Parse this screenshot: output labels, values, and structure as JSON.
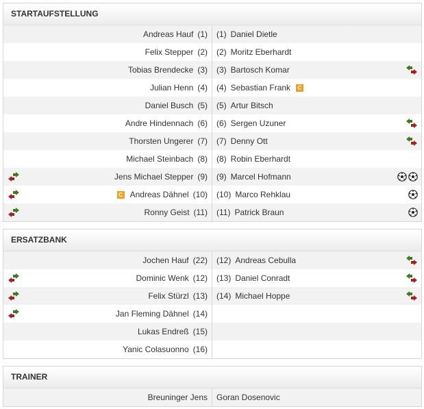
{
  "sections": [
    {
      "title": "STARTAUFSTELLUNG",
      "rows": [
        {
          "home": {
            "name": "Andreas Hauf",
            "num": "(1)",
            "icons": []
          },
          "away": {
            "num": "(1)",
            "name": "Daniel Dietle",
            "icons": []
          }
        },
        {
          "home": {
            "name": "Felix Stepper",
            "num": "(2)",
            "icons": []
          },
          "away": {
            "num": "(2)",
            "name": "Moritz Eberhardt",
            "icons": []
          }
        },
        {
          "home": {
            "name": "Tobias Brendecke",
            "num": "(3)",
            "icons": []
          },
          "away": {
            "num": "(3)",
            "name": "Bartosch Komar",
            "icons": [
              "substitution-out-icon"
            ]
          }
        },
        {
          "home": {
            "name": "Julian Henn",
            "num": "(4)",
            "icons": []
          },
          "away": {
            "num": "(4)",
            "name": "Sebastian Frank",
            "captain": "C",
            "icons": []
          }
        },
        {
          "home": {
            "name": "Daniel Busch",
            "num": "(5)",
            "icons": []
          },
          "away": {
            "num": "(5)",
            "name": "Artur Bitsch",
            "icons": []
          }
        },
        {
          "home": {
            "name": "Andre Hindennach",
            "num": "(6)",
            "icons": []
          },
          "away": {
            "num": "(6)",
            "name": "Sergen Uzuner",
            "icons": [
              "substitution-out-icon"
            ]
          }
        },
        {
          "home": {
            "name": "Thorsten Ungerer",
            "num": "(7)",
            "icons": []
          },
          "away": {
            "num": "(7)",
            "name": "Denny Ott",
            "icons": [
              "substitution-out-icon"
            ]
          }
        },
        {
          "home": {
            "name": "Michael Steinbach",
            "num": "(8)",
            "icons": []
          },
          "away": {
            "num": "(8)",
            "name": "Robin Eberhardt",
            "icons": []
          }
        },
        {
          "home": {
            "name": "Jens Michael Stepper",
            "num": "(9)",
            "icons": [
              "substitution-out-icon"
            ]
          },
          "away": {
            "num": "(9)",
            "name": "Marcel Hofmann",
            "icons": [
              "goal-icon",
              "goal-icon"
            ]
          }
        },
        {
          "home": {
            "name": "Andreas Dähnel",
            "num": "(10)",
            "captain": "C",
            "icons": [
              "substitution-out-icon"
            ]
          },
          "away": {
            "num": "(10)",
            "name": "Marco Rehklau",
            "icons": [
              "goal-icon"
            ]
          }
        },
        {
          "home": {
            "name": "Ronny Geist",
            "num": "(11)",
            "icons": [
              "substitution-out-icon"
            ]
          },
          "away": {
            "num": "(11)",
            "name": "Patrick Braun",
            "icons": [
              "goal-icon"
            ]
          }
        }
      ]
    },
    {
      "title": "ERSATZBANK",
      "rows": [
        {
          "home": {
            "name": "Jochen Hauf",
            "num": "(22)",
            "icons": []
          },
          "away": {
            "num": "(12)",
            "name": "Andreas Cebulla",
            "icons": [
              "substitution-in-icon"
            ]
          }
        },
        {
          "home": {
            "name": "Dominic Wenk",
            "num": "(12)",
            "icons": [
              "substitution-in-icon"
            ]
          },
          "away": {
            "num": "(13)",
            "name": "Daniel Conradt",
            "icons": [
              "substitution-in-icon"
            ]
          }
        },
        {
          "home": {
            "name": "Felix Stürzl",
            "num": "(13)",
            "icons": [
              "substitution-in-icon"
            ]
          },
          "away": {
            "num": "(14)",
            "name": "Michael Hoppe",
            "icons": [
              "substitution-in-icon"
            ]
          }
        },
        {
          "home": {
            "name": "Jan Fleming Dähnel",
            "num": "(14)",
            "icons": [
              "substitution-in-icon"
            ]
          },
          "away": null
        },
        {
          "home": {
            "name": "Lukas Endreß",
            "num": "(15)",
            "icons": []
          },
          "away": null
        },
        {
          "home": {
            "name": "Yanic Colasuonno",
            "num": "(16)",
            "icons": []
          },
          "away": null
        }
      ]
    },
    {
      "title": "TRAINER",
      "rows": [
        {
          "home": {
            "name": "Breuninger Jens",
            "num": "",
            "icons": []
          },
          "away": {
            "num": "",
            "name": "Goran Dosenovic",
            "icons": []
          }
        }
      ]
    }
  ],
  "colors": {
    "arrow_green": "#3f7a1c",
    "arrow_red": "#b01c1c",
    "captain": "#f0a020"
  }
}
